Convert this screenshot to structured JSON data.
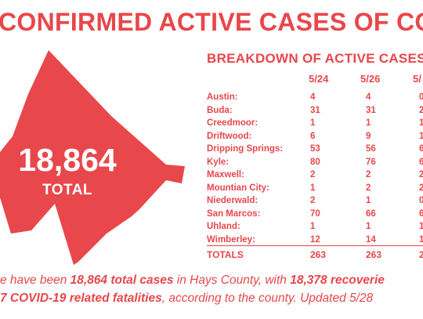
{
  "headline": "CONFIRMED ACTIVE CASES OF COVID",
  "big_total": {
    "number": "18,864",
    "label": "TOTAL"
  },
  "breakdown": {
    "title": "BREAKDOWN OF ACTIVE CASES",
    "dates": [
      "5/24",
      "5/26",
      "5/"
    ],
    "rows": [
      {
        "city": "Austin:",
        "values": [
          "4",
          "4",
          "0"
        ]
      },
      {
        "city": "Buda:",
        "values": [
          "31",
          "31",
          "2"
        ]
      },
      {
        "city": "Creedmoor:",
        "values": [
          "1",
          "1",
          "1"
        ]
      },
      {
        "city": "Driftwood:",
        "values": [
          "6",
          "9",
          "1"
        ]
      },
      {
        "city": "Dripping Springs:",
        "values": [
          "53",
          "56",
          "6"
        ]
      },
      {
        "city": "Kyle:",
        "values": [
          "80",
          "76",
          "6"
        ]
      },
      {
        "city": "Maxwell:",
        "values": [
          "2",
          "2",
          "2"
        ]
      },
      {
        "city": "Mountian City:",
        "values": [
          "1",
          "2",
          "2"
        ]
      },
      {
        "city": "Niederwald:",
        "values": [
          "2",
          "1",
          "0"
        ]
      },
      {
        "city": "San Marcos:",
        "values": [
          "70",
          "66",
          "6"
        ]
      },
      {
        "city": "Uhland:",
        "values": [
          "1",
          "1",
          "1"
        ]
      },
      {
        "city": "Wimberley:",
        "values": [
          "12",
          "14",
          "1"
        ]
      }
    ],
    "totals": {
      "city": "TOTALS",
      "values": [
        "263",
        "263",
        "2"
      ]
    }
  },
  "footer": {
    "line1_a": "e have been ",
    "line1_b": "18,864 total cases",
    "line1_c": " in Hays County, with ",
    "line1_d": "18,378 recoverie",
    "line2_a": "7 COVID-19 related fatalities",
    "line2_b": ", according to the county. Updated 5/28"
  },
  "colors": {
    "accent": "#e8474b",
    "background": "#ffffff"
  }
}
